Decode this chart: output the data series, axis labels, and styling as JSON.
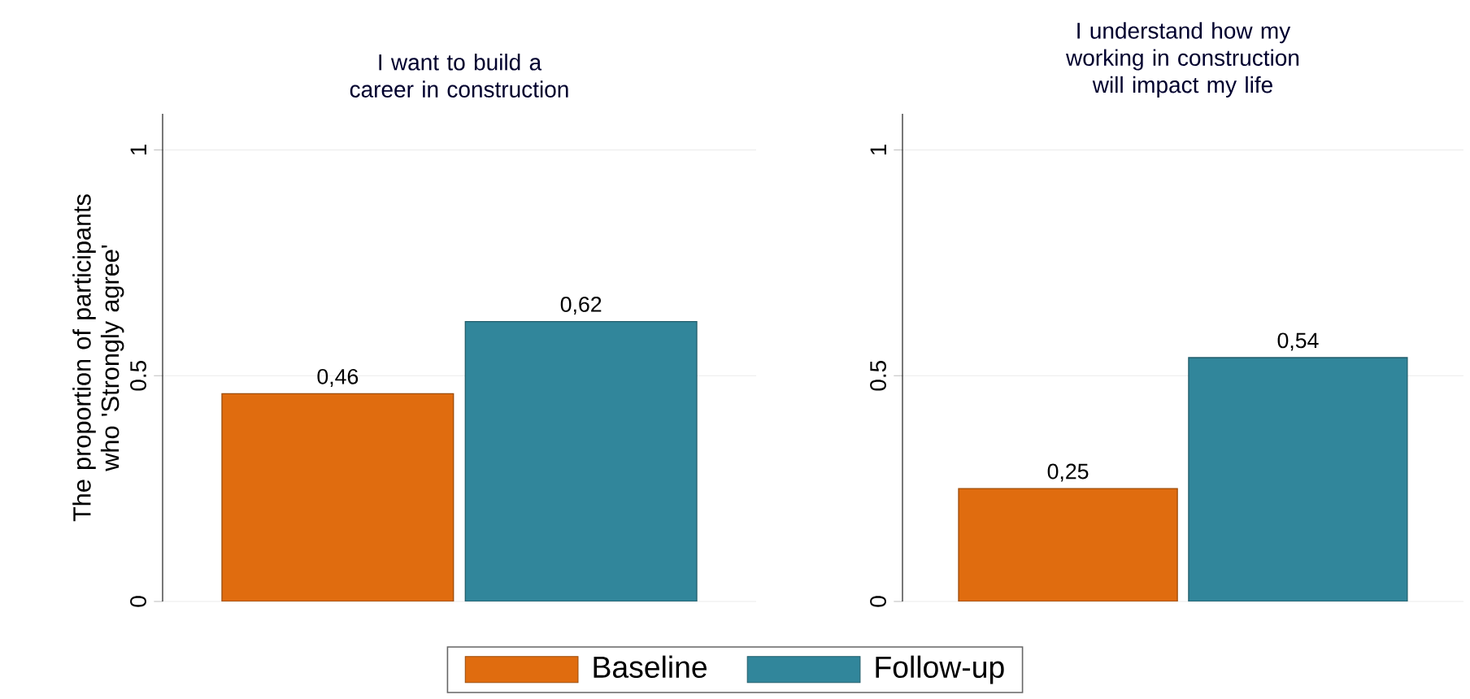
{
  "chart_data": [
    {
      "type": "bar",
      "title": "I want to build a career in construction",
      "ylabel": "The proportion of participants who 'Strongly agree'",
      "categories": [
        null
      ],
      "ylim": [
        0,
        1.08
      ],
      "yticks": [
        0,
        0.5,
        1
      ],
      "grid": "y",
      "legend": "bottom",
      "series": [
        {
          "name": "Baseline",
          "color": "#e06c0f",
          "values": [
            0.46
          ],
          "value_labels": [
            "0,46"
          ]
        },
        {
          "name": "Follow-up",
          "color": "#31869b",
          "values": [
            0.62
          ],
          "value_labels": [
            "0,62"
          ]
        }
      ]
    },
    {
      "type": "bar",
      "title": "I understand how my working in construction will impact my life",
      "categories": [
        null
      ],
      "ylim": [
        0,
        1.08
      ],
      "yticks": [
        0,
        0.5,
        1
      ],
      "grid": "y",
      "series": [
        {
          "color": "#e06c0f",
          "values": [
            0.25
          ],
          "value_labels": [
            "0,25"
          ]
        },
        {
          "color": "#31869b",
          "values": [
            0.54
          ],
          "value_labels": [
            "0,54"
          ]
        }
      ]
    }
  ]
}
